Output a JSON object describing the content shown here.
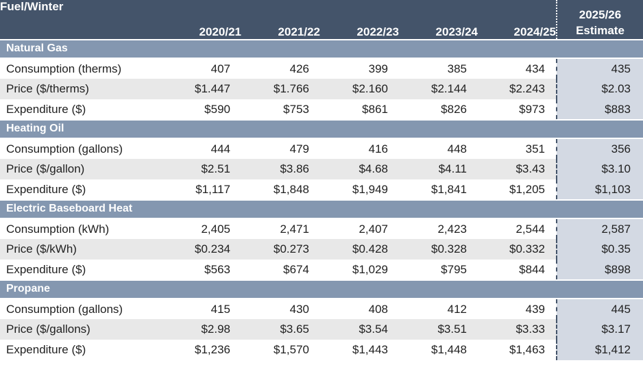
{
  "table": {
    "corner_label": "Fuel/Winter",
    "year_columns": [
      "2020/21",
      "2021/22",
      "2022/23",
      "2023/24",
      "2024/25"
    ],
    "estimate_column": {
      "line1": "2025/26",
      "line2": "Estimate"
    },
    "sections": [
      {
        "name": "Natural Gas",
        "rows": [
          {
            "label": "Consumption (therms)",
            "values": [
              "407",
              "426",
              "399",
              "385",
              "434"
            ],
            "estimate": "435"
          },
          {
            "label": "Price ($/therms)",
            "values": [
              "$1.447",
              "$1.766",
              "$2.160",
              "$2.144",
              "$2.243"
            ],
            "estimate": "$2.03"
          },
          {
            "label": "Expenditure ($)",
            "values": [
              "$590",
              "$753",
              "$861",
              "$826",
              "$973"
            ],
            "estimate": "$883"
          }
        ]
      },
      {
        "name": "Heating Oil",
        "rows": [
          {
            "label": "Consumption (gallons)",
            "values": [
              "444",
              "479",
              "416",
              "448",
              "351"
            ],
            "estimate": "356"
          },
          {
            "label": "Price ($/gallon)",
            "values": [
              "$2.51",
              "$3.86",
              "$4.68",
              "$4.11",
              "$3.43"
            ],
            "estimate": "$3.10"
          },
          {
            "label": "Expenditure ($)",
            "values": [
              "$1,117",
              "$1,848",
              "$1,949",
              "$1,841",
              "$1,205"
            ],
            "estimate": "$1,103"
          }
        ]
      },
      {
        "name": "Electric Baseboard Heat",
        "rows": [
          {
            "label": "Consumption (kWh)",
            "values": [
              "2,405",
              "2,471",
              "2,407",
              "2,423",
              "2,544"
            ],
            "estimate": "2,587"
          },
          {
            "label": "Price ($/kWh)",
            "values": [
              "$0.234",
              "$0.273",
              "$0.428",
              "$0.328",
              "$0.332"
            ],
            "estimate": "$0.35"
          },
          {
            "label": "Expenditure ($)",
            "values": [
              "$563",
              "$674",
              "$1,029",
              "$795",
              "$844"
            ],
            "estimate": "$898"
          }
        ]
      },
      {
        "name": "Propane",
        "rows": [
          {
            "label": "Consumption (gallons)",
            "values": [
              "415",
              "430",
              "408",
              "412",
              "439"
            ],
            "estimate": "445"
          },
          {
            "label": "Price ($/gallons)",
            "values": [
              "$2.98",
              "$3.65",
              "$3.54",
              "$3.51",
              "$3.33"
            ],
            "estimate": "$3.17"
          },
          {
            "label": "Expenditure ($)",
            "values": [
              "$1,236",
              "$1,570",
              "$1,443",
              "$1,448",
              "$1,463"
            ],
            "estimate": "$1,412"
          }
        ]
      }
    ],
    "colors": {
      "header_bg": "#44546A",
      "section_band_bg": "#8497B0",
      "alt_row_bg": "#E8E8E8",
      "estimate_col_bg": "#D3D9E3",
      "header_text": "#FFFFFF",
      "body_text": "#1F1F1F"
    }
  },
  "chart_data": {
    "type": "table",
    "title": "Fuel/Winter",
    "columns": [
      "Fuel/Winter",
      "2020/21",
      "2021/22",
      "2022/23",
      "2023/24",
      "2024/25",
      "2025/26 Estimate"
    ],
    "sections": [
      {
        "name": "Natural Gas",
        "rows": [
          {
            "label": "Consumption (therms)",
            "values": [
              407,
              426,
              399,
              385,
              434,
              435
            ]
          },
          {
            "label": "Price ($/therms)",
            "values": [
              1.447,
              1.766,
              2.16,
              2.144,
              2.243,
              2.03
            ]
          },
          {
            "label": "Expenditure ($)",
            "values": [
              590,
              753,
              861,
              826,
              973,
              883
            ]
          }
        ]
      },
      {
        "name": "Heating Oil",
        "rows": [
          {
            "label": "Consumption (gallons)",
            "values": [
              444,
              479,
              416,
              448,
              351,
              356
            ]
          },
          {
            "label": "Price ($/gallon)",
            "values": [
              2.51,
              3.86,
              4.68,
              4.11,
              3.43,
              3.1
            ]
          },
          {
            "label": "Expenditure ($)",
            "values": [
              1117,
              1848,
              1949,
              1841,
              1205,
              1103
            ]
          }
        ]
      },
      {
        "name": "Electric Baseboard Heat",
        "rows": [
          {
            "label": "Consumption (kWh)",
            "values": [
              2405,
              2471,
              2407,
              2423,
              2544,
              2587
            ]
          },
          {
            "label": "Price ($/kWh)",
            "values": [
              0.234,
              0.273,
              0.428,
              0.328,
              0.332,
              0.35
            ]
          },
          {
            "label": "Expenditure ($)",
            "values": [
              563,
              674,
              1029,
              795,
              844,
              898
            ]
          }
        ]
      },
      {
        "name": "Propane",
        "rows": [
          {
            "label": "Consumption (gallons)",
            "values": [
              415,
              430,
              408,
              412,
              439,
              445
            ]
          },
          {
            "label": "Price ($/gallons)",
            "values": [
              2.98,
              3.65,
              3.54,
              3.51,
              3.33,
              3.17
            ]
          },
          {
            "label": "Expenditure ($)",
            "values": [
              1236,
              1570,
              1443,
              1448,
              1463,
              1412
            ]
          }
        ]
      }
    ]
  }
}
